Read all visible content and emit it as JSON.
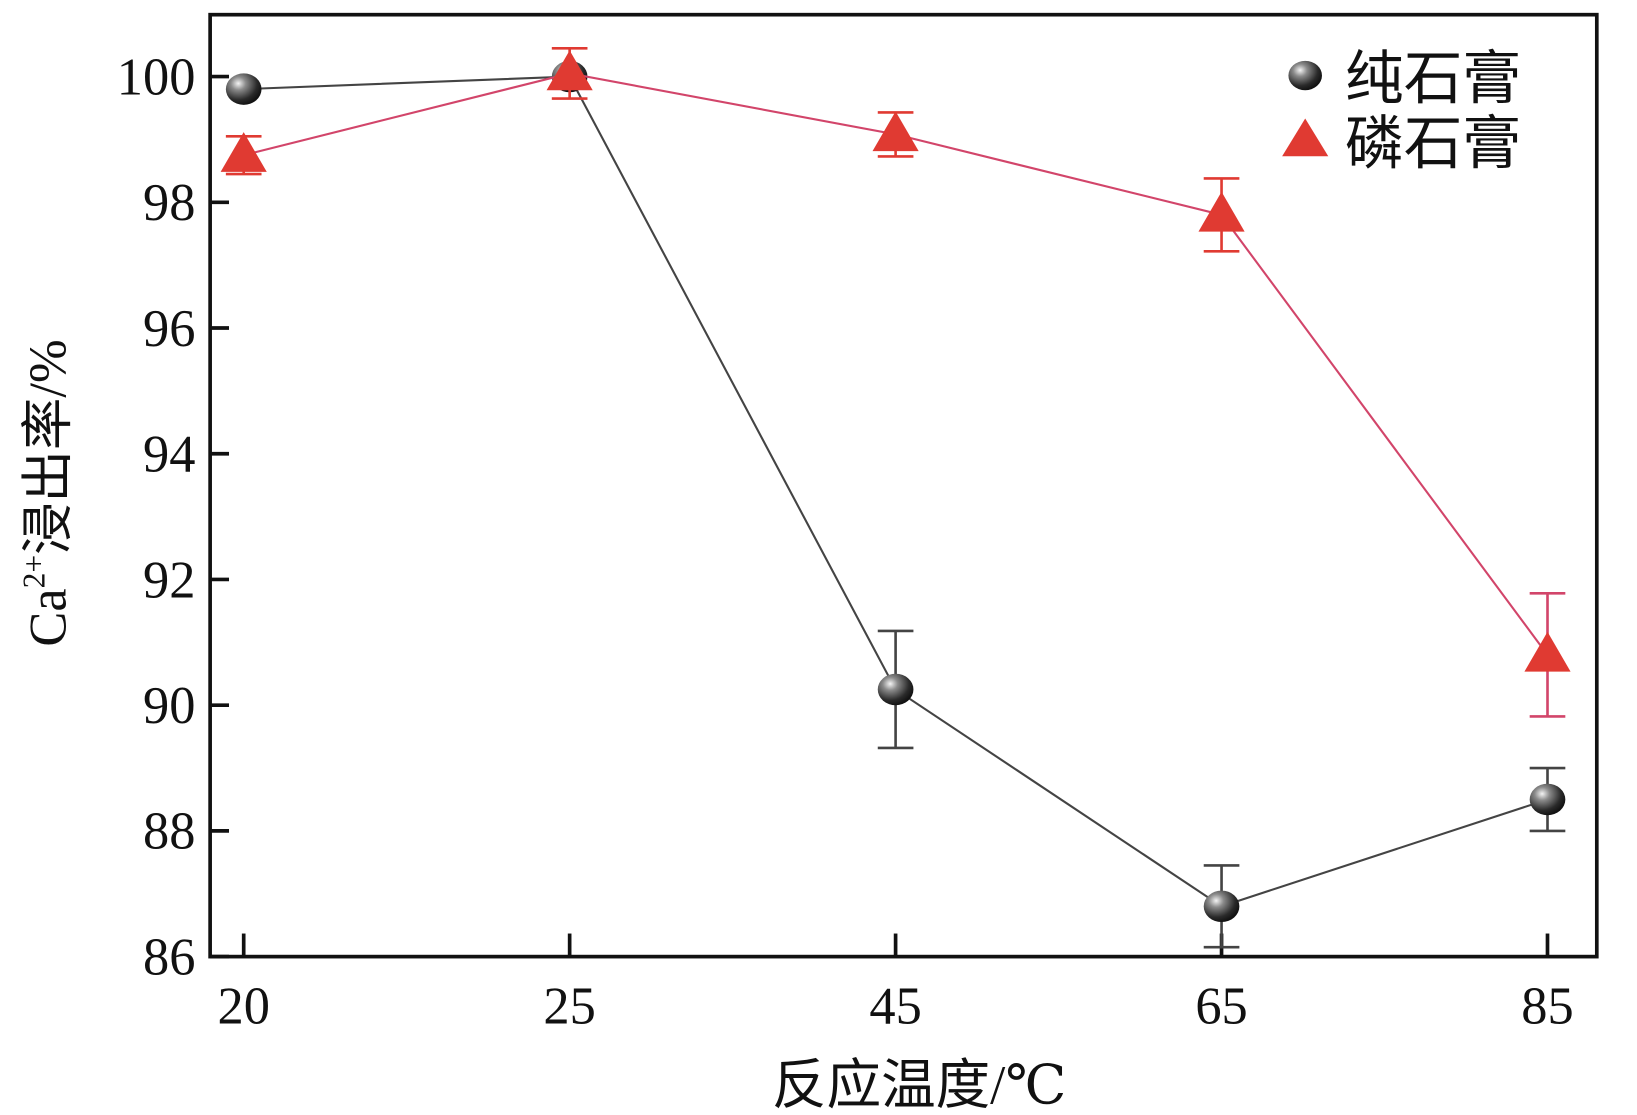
{
  "chart_data": {
    "type": "line",
    "title": "",
    "xlabel": "反应温度/℃",
    "ylabel_main": "Ca",
    "ylabel_sup": "2+",
    "ylabel_rest": "浸出率/%",
    "categories": [
      "20",
      "25",
      "45",
      "65",
      "85"
    ],
    "ylim": [
      86,
      101
    ],
    "yticks": [
      86,
      88,
      90,
      92,
      94,
      96,
      98,
      100
    ],
    "grid": false,
    "legend_position": "top-right",
    "series": [
      {
        "name": "纯石膏",
        "marker": "sphere",
        "color": "#444444",
        "values": [
          99.8,
          100.0,
          90.25,
          86.8,
          88.5
        ],
        "errors": [
          0,
          0,
          0.93,
          0.65,
          0.5
        ]
      },
      {
        "name": "磷石膏",
        "marker": "triangle",
        "color": "#e03a32",
        "line_color": "#d2456a",
        "values": [
          98.75,
          100.05,
          99.08,
          97.8,
          90.8
        ],
        "errors": [
          0.3,
          0.4,
          0.35,
          0.58,
          0.98
        ]
      }
    ]
  }
}
